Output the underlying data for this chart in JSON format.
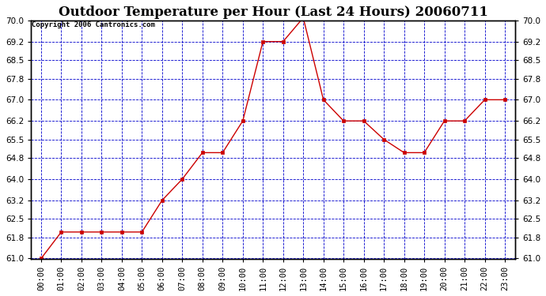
{
  "title": "Outdoor Temperature per Hour (Last 24 Hours) 20060711",
  "copyright_text": "Copyright 2006 Cantronics.com",
  "hours": [
    "00:00",
    "01:00",
    "02:00",
    "03:00",
    "04:00",
    "05:00",
    "06:00",
    "07:00",
    "08:00",
    "09:00",
    "10:00",
    "11:00",
    "12:00",
    "13:00",
    "14:00",
    "15:00",
    "16:00",
    "17:00",
    "18:00",
    "19:00",
    "20:00",
    "21:00",
    "22:00",
    "23:00"
  ],
  "temps": [
    61.0,
    62.0,
    62.0,
    62.0,
    62.0,
    62.0,
    63.2,
    64.0,
    65.0,
    65.0,
    66.2,
    69.2,
    69.2,
    70.1,
    67.0,
    66.2,
    66.2,
    65.5,
    65.0,
    65.0,
    66.2,
    66.2,
    67.0,
    67.0
  ],
  "line_color": "#cc0000",
  "marker": "s",
  "marker_color": "#cc0000",
  "marker_size": 3,
  "bg_color": "#ffffff",
  "plot_bg_color": "#ffffff",
  "grid_color": "#0000cc",
  "border_color": "#000000",
  "title_fontsize": 12,
  "copyright_fontsize": 6.5,
  "tick_fontsize": 7.5,
  "ylim": [
    61.0,
    70.0
  ],
  "yticks": [
    61.0,
    61.8,
    62.5,
    63.2,
    64.0,
    64.8,
    65.5,
    66.2,
    67.0,
    67.8,
    68.5,
    69.2,
    70.0
  ]
}
